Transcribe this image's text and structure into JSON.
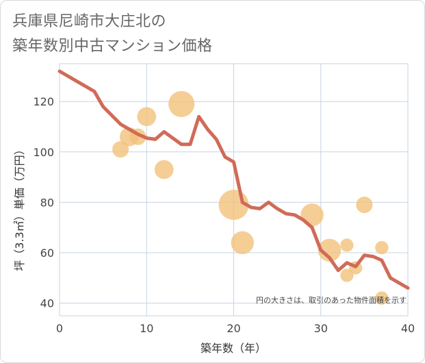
{
  "title": {
    "line1": "兵庫県尼崎市大庄北の",
    "line2": "築年数別中古マンション価格"
  },
  "colors": {
    "line": "#d06b58",
    "bubble": "#f3c27a",
    "grid": "#c5d3e2",
    "axis_text": "#444444"
  },
  "chart_data": {
    "type": "scatter",
    "xlabel": "築年数（年）",
    "ylabel": "坪（3.3㎡）単価（万円）",
    "xlim": [
      0,
      40
    ],
    "ylim": [
      35,
      135
    ],
    "x_ticks": [
      0,
      10,
      20,
      30,
      40
    ],
    "y_ticks": [
      40,
      60,
      80,
      100,
      120
    ],
    "grid": true,
    "note": "円の大きさは、取引のあった物件面積を示す",
    "series": [
      {
        "kind": "bubble",
        "points": [
          {
            "x": 7,
            "y": 101,
            "size": 2
          },
          {
            "x": 8,
            "y": 106,
            "size": 3
          },
          {
            "x": 9,
            "y": 106,
            "size": 2
          },
          {
            "x": 10,
            "y": 114,
            "size": 3
          },
          {
            "x": 12,
            "y": 93,
            "size": 3
          },
          {
            "x": 14,
            "y": 119,
            "size": 7
          },
          {
            "x": 20,
            "y": 79,
            "size": 10
          },
          {
            "x": 21,
            "y": 64,
            "size": 5
          },
          {
            "x": 29,
            "y": 75,
            "size": 5
          },
          {
            "x": 31,
            "y": 61,
            "size": 5
          },
          {
            "x": 33,
            "y": 63,
            "size": 1
          },
          {
            "x": 33,
            "y": 51,
            "size": 1
          },
          {
            "x": 34,
            "y": 54,
            "size": 1
          },
          {
            "x": 35,
            "y": 79,
            "size": 2
          },
          {
            "x": 37,
            "y": 62,
            "size": 1
          },
          {
            "x": 37,
            "y": 42,
            "size": 1
          }
        ]
      },
      {
        "kind": "line",
        "x": [
          0,
          2,
          4,
          5,
          7,
          8,
          9,
          10,
          11,
          12,
          14,
          15,
          16,
          17,
          18,
          19,
          20,
          21,
          22,
          23,
          24,
          25,
          26,
          27,
          28,
          29,
          30,
          31,
          32,
          33,
          34,
          35,
          36,
          37,
          38,
          40
        ],
        "y": [
          132,
          128,
          124,
          118,
          111,
          109,
          107,
          105.5,
          105,
          108,
          103,
          103,
          114,
          109,
          105,
          98,
          96,
          80,
          78,
          77.5,
          80,
          77.5,
          75.5,
          75,
          73,
          70,
          61,
          58,
          53,
          56,
          54.5,
          59,
          58.5,
          57,
          50,
          46
        ]
      }
    ]
  }
}
